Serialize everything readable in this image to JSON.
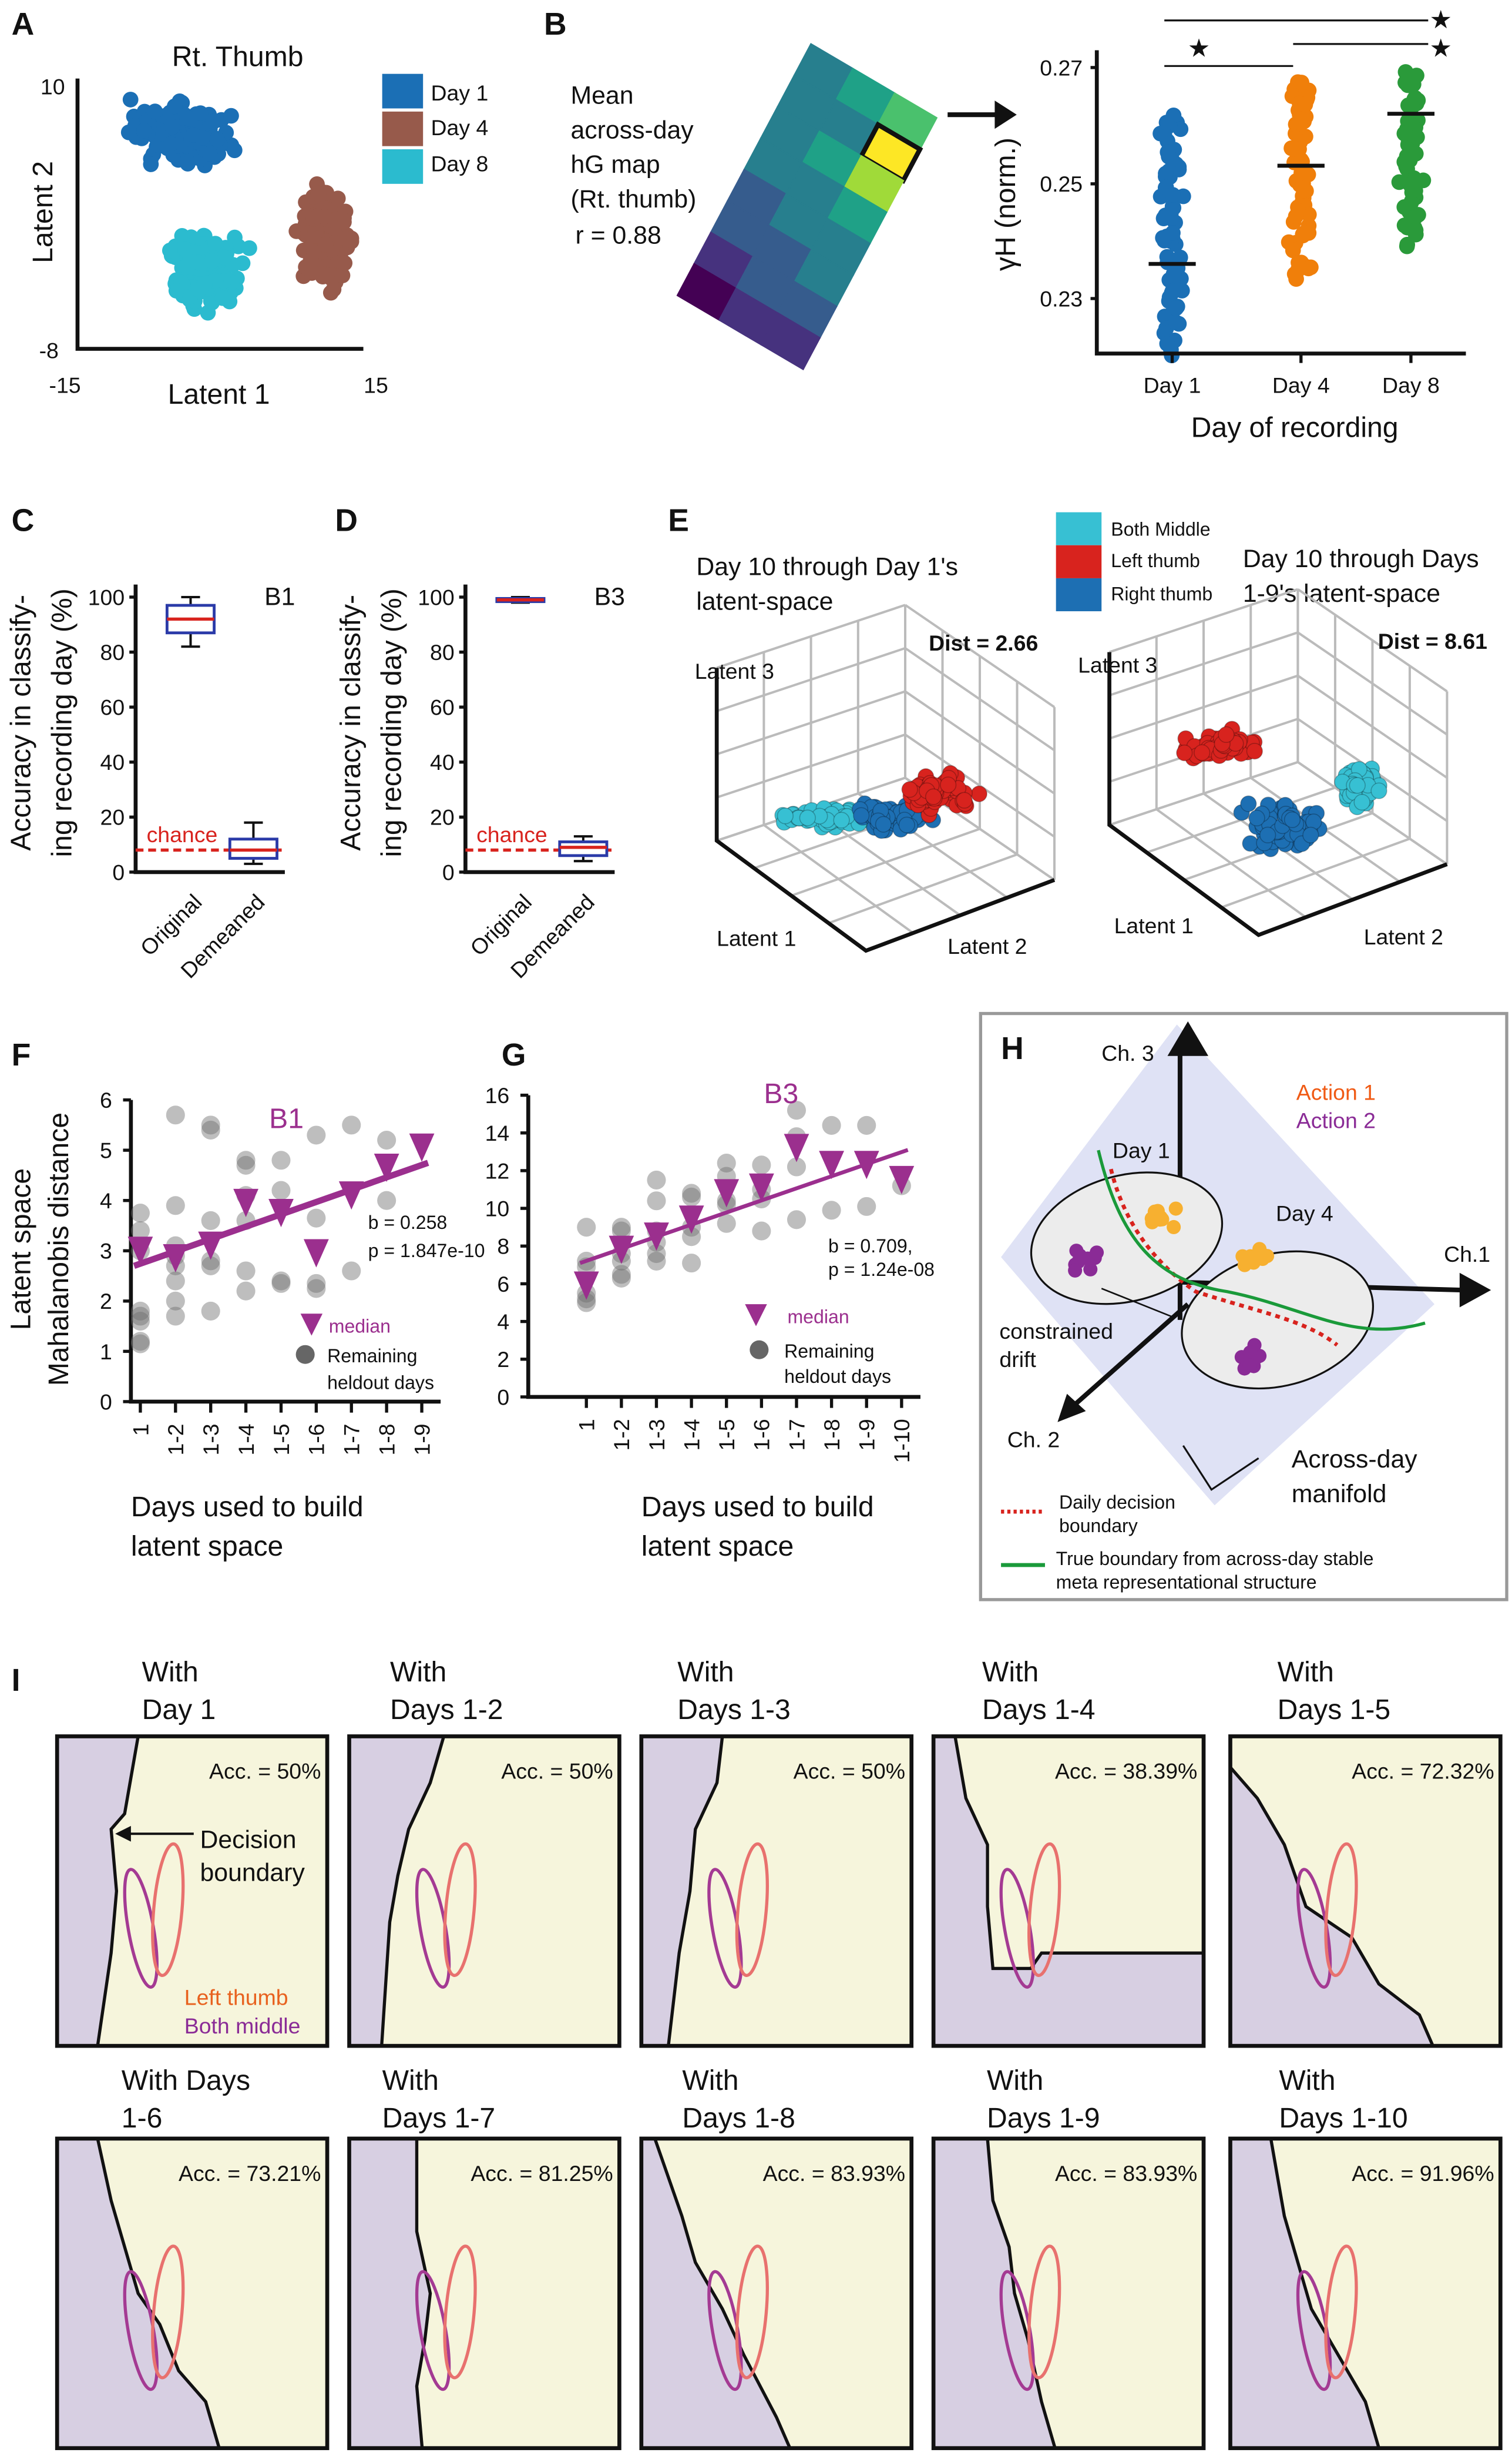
{
  "panel_labels": [
    "A",
    "B",
    "C",
    "D",
    "E",
    "F",
    "G",
    "H",
    "I"
  ],
  "A": {
    "title": "Rt. Thumb",
    "xlabel": "Latent 1",
    "ylabel": "Latent 2",
    "x_ticks": [
      "-15",
      "15"
    ],
    "y_ticks": [
      "10",
      "-8"
    ],
    "legend": [
      {
        "label": "Day 1",
        "color": "#1b6fb5"
      },
      {
        "label": "Day 4",
        "color": "#975a4b"
      },
      {
        "label": "Day 8",
        "color": "#2bbbcf"
      }
    ]
  },
  "B": {
    "map_text": [
      "Mean",
      "across-day",
      "hG map",
      "(Rt. thumb)",
      "r = 0.88"
    ],
    "ylabel": "γH (norm.)",
    "xlabel": "Day of recording",
    "y_ticks": [
      "0.27",
      "0.25",
      "0.23"
    ],
    "ylim": [
      0.22,
      0.275
    ],
    "categories": [
      "Day 1",
      "Day 4",
      "Day 8"
    ],
    "medians": [
      0.236,
      0.253,
      0.262
    ],
    "colors": [
      "#1b6fb5",
      "#f07f0a",
      "#2a9a3a"
    ],
    "significance": "★"
  },
  "C": {
    "title": "B1",
    "ylabel": [
      "Accuracy in classify-",
      "ing recording day (%)"
    ],
    "y_ticks": [
      "100",
      "80",
      "60",
      "40",
      "20",
      "0"
    ],
    "chance_label": "chance",
    "chance_value": 8,
    "categories": [
      "Original",
      "Demeaned"
    ],
    "boxes": [
      {
        "min": 82,
        "q1": 87,
        "median": 92,
        "q3": 97,
        "max": 100
      },
      {
        "min": 3,
        "q1": 5,
        "median": 8,
        "q3": 12,
        "max": 18
      }
    ]
  },
  "D": {
    "title": "B3",
    "ylabel": [
      "Accuracy in classify-",
      "ing recording day (%)"
    ],
    "y_ticks": [
      "100",
      "80",
      "60",
      "40",
      "20",
      "0"
    ],
    "chance_label": "chance",
    "chance_value": 8,
    "categories": [
      "Original",
      "Demeaned"
    ],
    "boxes": [
      {
        "min": 98,
        "q1": 98.5,
        "median": 99,
        "q3": 99.5,
        "max": 100
      },
      {
        "min": 4,
        "q1": 6,
        "median": 9,
        "q3": 11,
        "max": 13
      }
    ]
  },
  "E": {
    "left_title": [
      "Day 10 through Day 1's",
      "latent-space"
    ],
    "right_title": [
      "Day 10 through Days",
      "1-9's latent-space"
    ],
    "legend": [
      {
        "label": "Both Middle",
        "color": "#37c0d3"
      },
      {
        "label": "Left thumb",
        "color": "#d8231e"
      },
      {
        "label": "Right thumb",
        "color": "#1d6fb3"
      }
    ],
    "left_dist": "Dist = 2.66",
    "right_dist": "Dist = 8.61",
    "axis_labels": [
      "Latent 1",
      "Latent 2",
      "Latent 3"
    ]
  },
  "chart_data": [
    {
      "type": "scatter",
      "panel": "F",
      "title": "B1",
      "ylabel": [
        "Latent space",
        "Mahalanobis distance"
      ],
      "xlabel": [
        "Days used to build",
        "latent space"
      ],
      "categories": [
        "1",
        "1-2",
        "1-3",
        "1-4",
        "1-5",
        "1-6",
        "1-7",
        "1-8",
        "1-9"
      ],
      "ylim": [
        0,
        6
      ],
      "y_ticks": [
        "0",
        "1",
        "2",
        "3",
        "4",
        "5",
        "6"
      ],
      "medians": [
        3.0,
        2.85,
        3.1,
        3.95,
        3.75,
        2.95,
        4.1,
        4.65,
        5.05
      ],
      "heldout": [
        [
          3.75,
          3.4,
          3.0,
          1.8,
          1.6,
          1.7,
          1.2,
          1.15
        ],
        [
          5.7,
          3.9,
          3.1,
          2.9,
          2.7,
          2.4,
          2.0,
          1.7
        ],
        [
          5.5,
          5.4,
          3.6,
          2.8,
          2.7,
          1.8
        ],
        [
          4.8,
          4.7,
          4.1,
          3.6,
          2.6,
          2.2
        ],
        [
          4.8,
          4.2,
          2.4,
          2.35
        ],
        [
          5.3,
          3.65,
          2.35,
          2.25
        ],
        [
          5.5,
          2.6
        ],
        [
          5.2,
          4.0
        ],
        []
      ],
      "fit": {
        "start": 2.7,
        "end": 4.75
      },
      "b_text": "b = 0.258",
      "p_text": "p = 1.847e-10",
      "legend": {
        "median": "median",
        "dots": [
          "Remaining",
          "heldout days"
        ]
      },
      "color": "#9b2f8e"
    },
    {
      "type": "scatter",
      "panel": "G",
      "title": "B3",
      "xlabel": [
        "Days used to build",
        "latent space"
      ],
      "categories": [
        "1",
        "1-2",
        "1-3",
        "1-4",
        "1-5",
        "1-6",
        "1-7",
        "1-8",
        "1-9",
        "1-10"
      ],
      "ylim": [
        0,
        16
      ],
      "y_ticks": [
        "0",
        "2",
        "4",
        "6",
        "8",
        "10",
        "12",
        "14",
        "16"
      ],
      "medians": [
        5.9,
        7.8,
        8.5,
        9.4,
        10.8,
        11.1,
        13.2,
        12.3,
        12.3,
        11.5
      ],
      "heldout": [
        [
          9.0,
          7.2,
          6.9,
          5.5,
          5.2,
          5.0
        ],
        [
          9.0,
          8.8,
          7.6,
          7.2,
          6.5,
          6.3
        ],
        [
          11.5,
          10.4,
          8.8,
          8.2,
          7.6,
          7.2
        ],
        [
          10.8,
          10.6,
          9.0,
          8.5,
          7.1
        ],
        [
          12.4,
          11.7,
          10.4,
          10.2,
          9.2
        ],
        [
          12.3,
          11.0,
          10.5,
          8.8
        ],
        [
          15.2,
          13.8,
          12.2,
          9.4
        ],
        [
          14.4,
          9.9
        ],
        [
          14.4,
          10.1
        ],
        [
          11.2
        ]
      ],
      "fit": {
        "start": 7.1,
        "end": 13.1
      },
      "b_text": "b = 0.709,",
      "p_text": "p = 1.24e-08",
      "legend": {
        "median": "median",
        "dots": [
          "Remaining",
          "heldout days"
        ]
      },
      "color": "#9b2f8e"
    }
  ],
  "H": {
    "axes": [
      "Ch. 3",
      "Ch.1",
      "Ch. 2"
    ],
    "actions": [
      {
        "label": "Action 1",
        "color": "#f05a14"
      },
      {
        "label": "Action 2",
        "color": "#8a2b96"
      }
    ],
    "days": [
      "Day 1",
      "Day 4"
    ],
    "drift": [
      "constrained",
      "drift"
    ],
    "manifold": [
      "Across-day",
      "manifold"
    ],
    "legend": [
      {
        "text": [
          "Daily decision",
          "boundary"
        ],
        "color": "#d8231e"
      },
      {
        "text": [
          "True boundary from across-day stable",
          "meta representational structure"
        ],
        "color": "#1a9a3a"
      }
    ]
  },
  "I": {
    "panels": [
      {
        "title": [
          "With",
          "Day 1"
        ],
        "acc": "Acc. = 50%"
      },
      {
        "title": [
          "With",
          "Days 1-2"
        ],
        "acc": "Acc. = 50%"
      },
      {
        "title": [
          "With",
          "Days 1-3"
        ],
        "acc": "Acc. = 50%"
      },
      {
        "title": [
          "With",
          "Days 1-4"
        ],
        "acc": "Acc. = 38.39%"
      },
      {
        "title": [
          "With",
          "Days 1-5"
        ],
        "acc": "Acc. = 72.32%"
      },
      {
        "title": [
          "With Days",
          "1-6"
        ],
        "acc": "Acc. = 73.21%"
      },
      {
        "title": [
          "With",
          "Days 1-7"
        ],
        "acc": "Acc. = 81.25%"
      },
      {
        "title": [
          "With",
          "Days 1-8"
        ],
        "acc": "Acc. = 83.93%"
      },
      {
        "title": [
          "With",
          "Days 1-9"
        ],
        "acc": "Acc. = 83.93%"
      },
      {
        "title": [
          "With",
          "Days 1-10"
        ],
        "acc": "Acc. = 91.96%"
      }
    ],
    "annotation": [
      "Decision",
      "boundary"
    ],
    "left_thumb": "Left thumb",
    "both_middle": "Both middle",
    "colors": {
      "left_region": "#d7cfe2",
      "right_region": "#f6f5dc",
      "left_thumb": "#e8716e",
      "both_middle": "#a43a93"
    }
  }
}
